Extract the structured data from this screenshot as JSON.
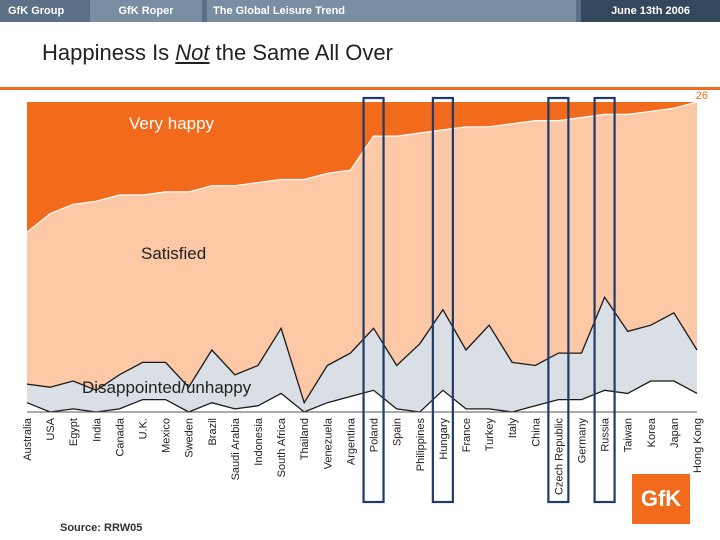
{
  "header": {
    "tabs": [
      {
        "label": "GfK Group"
      },
      {
        "label": "GfK Roper"
      },
      {
        "label": "The Global Leisure Trend"
      },
      {
        "label": "June 13th 2006"
      }
    ]
  },
  "title": {
    "before": "Happiness Is ",
    "emphasis": "Not",
    "after": " the Same All Over"
  },
  "page_number": "26",
  "source": "Source: RRW05",
  "logo_text": "GfK",
  "colors": {
    "very_happy": "#f26a1b",
    "satisfied": "#fcc8a6",
    "disappointed_upper": "#d9dfe4",
    "lower_band": "#ffffff",
    "line": "#1a1a1a",
    "highlight_box": "#1f3a6b"
  },
  "chart_data": {
    "type": "area",
    "title": "",
    "xlabel": "",
    "ylabel": "",
    "ylim": [
      0,
      100
    ],
    "categories": [
      "Australia",
      "USA",
      "Egypt",
      "India",
      "Canada",
      "U.K.",
      "Mexico",
      "Sweden",
      "Brazil",
      "Saudi Arabia",
      "Indonesia",
      "South Africa",
      "Thailand",
      "Venezuela",
      "Argentina",
      "Poland",
      "Spain",
      "Philippines",
      "Hungary",
      "France",
      "Turkey",
      "Italy",
      "China",
      "Czech Republic",
      "Germany",
      "Russia",
      "Taiwan",
      "Korea",
      "Japan",
      "Hong Kong"
    ],
    "series": [
      {
        "name": "Very happy",
        "band": "top",
        "lower_boundary": [
          58,
          64,
          67,
          68,
          70,
          70,
          71,
          71,
          73,
          73,
          74,
          75,
          75,
          77,
          78,
          89,
          89,
          90,
          91,
          92,
          92,
          93,
          94,
          94,
          95,
          96,
          96,
          97,
          98,
          100
        ]
      },
      {
        "name": "Satisfied",
        "band": "middle",
        "lower_boundary": [
          9,
          8,
          10,
          7,
          12,
          16,
          16,
          8,
          20,
          12,
          15,
          27,
          3,
          15,
          19,
          27,
          15,
          22,
          33,
          20,
          28,
          16,
          15,
          19,
          19,
          37,
          26,
          28,
          32,
          20
        ]
      },
      {
        "name": "Disappointed/unhappy",
        "band": "bottom",
        "inner_line": [
          3,
          0,
          1,
          0,
          1,
          4,
          4,
          0,
          3,
          1,
          2,
          6,
          0,
          3,
          5,
          7,
          1,
          0,
          7,
          1,
          1,
          0,
          2,
          4,
          4,
          7,
          6,
          10,
          10,
          6
        ]
      }
    ],
    "highlighted": [
      "Poland",
      "Hungary",
      "Czech Republic",
      "Russia"
    ],
    "legend": "inline labels inside bands",
    "grid": false
  }
}
